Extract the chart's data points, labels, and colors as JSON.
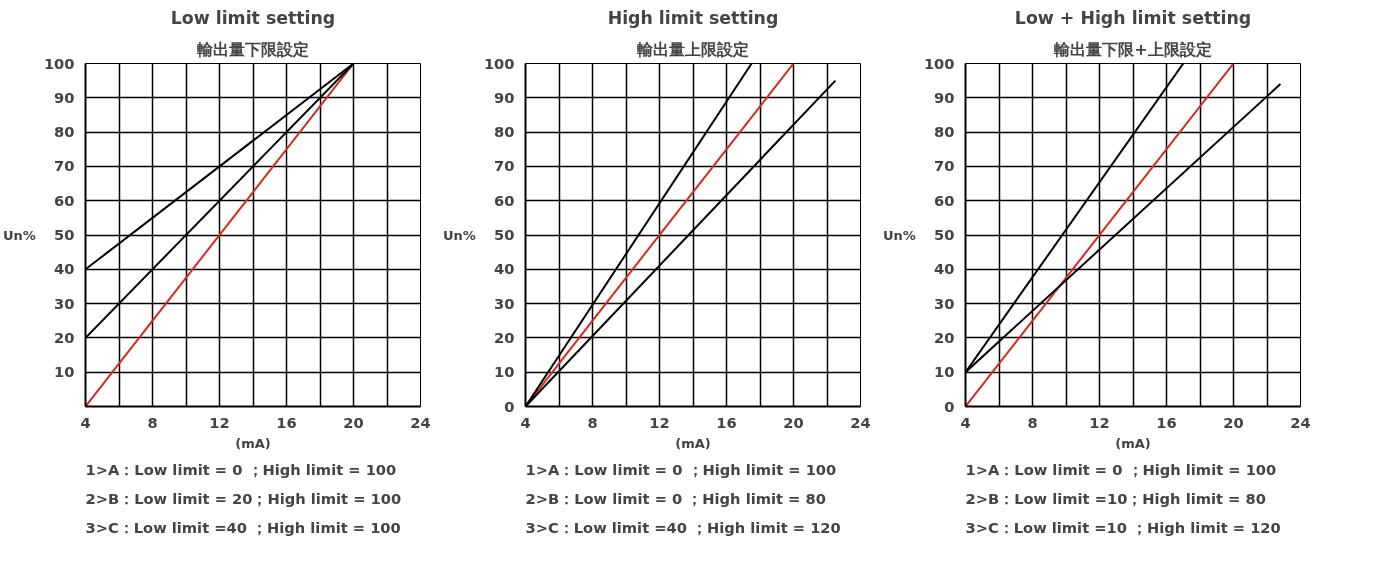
{
  "chart_data": [
    {
      "type": "line",
      "title": "Low limit setting",
      "subtitle": "輸出量下限設定",
      "xlabel": "(mA)",
      "ylabel": "Un%",
      "xlim": [
        4,
        24
      ],
      "ylim": [
        0,
        100
      ],
      "xticks": [
        4,
        {
          "value": 6,
          "label": null
        },
        8,
        {
          "value": 10,
          "label": null
        },
        12,
        {
          "value": 14,
          "label": null
        },
        16,
        {
          "value": 18,
          "label": null
        },
        20,
        {
          "value": 22,
          "label": null
        },
        24
      ],
      "yticks": [
        {
          "value": 0,
          "label": null
        },
        10,
        20,
        30,
        40,
        50,
        60,
        70,
        80,
        90,
        100
      ],
      "grid": true,
      "marker": "none",
      "line_style": "solid",
      "series": [
        {
          "color": "#d42a1e",
          "x": [
            4,
            20
          ],
          "values": [
            0,
            100
          ]
        },
        {
          "color": "#000000",
          "x": [
            4,
            20
          ],
          "values": [
            20,
            100
          ]
        },
        {
          "color": "#000000",
          "x": [
            4,
            20
          ],
          "values": [
            40,
            100
          ]
        }
      ],
      "annotations": [
        "1>A：Low limit = 0 ；High limit = 100",
        "2>B：Low limit = 20；High limit = 100",
        "3>C：Low limit =40 ；High limit = 100"
      ]
    },
    {
      "type": "line",
      "title": "High limit setting",
      "subtitle": "輸出量上限設定",
      "xlabel": "(mA)",
      "ylabel": "Un%",
      "xlim": [
        4,
        24
      ],
      "ylim": [
        0,
        100
      ],
      "xticks": [
        4,
        {
          "value": 6,
          "label": null
        },
        8,
        {
          "value": 10,
          "label": null
        },
        12,
        {
          "value": 14,
          "label": null
        },
        16,
        {
          "value": 18,
          "label": null
        },
        20,
        {
          "value": 22,
          "label": null
        },
        24
      ],
      "yticks": [
        0,
        10,
        20,
        30,
        40,
        50,
        60,
        70,
        80,
        90,
        100
      ],
      "grid": true,
      "marker": "none",
      "line_style": "solid",
      "series": [
        {
          "color": "#d42a1e",
          "x": [
            4,
            20
          ],
          "values": [
            0,
            100
          ]
        },
        {
          "color": "#000000",
          "x": [
            4,
            17.5
          ],
          "values": [
            0,
            100
          ]
        },
        {
          "color": "#000000",
          "x": [
            4,
            22.5
          ],
          "values": [
            0,
            95
          ]
        }
      ],
      "annotations": [
        "1>A：Low limit = 0 ；High limit = 100",
        "2>B：Low limit = 0 ；High limit = 80",
        "3>C：Low limit =40 ；High limit = 120"
      ]
    },
    {
      "type": "line",
      "title": "Low + High limit setting",
      "subtitle": "輸出量下限+上限設定",
      "xlabel": "(mA)",
      "ylabel": "Un%",
      "xlim": [
        4,
        24
      ],
      "ylim": [
        0,
        100
      ],
      "xticks": [
        4,
        {
          "value": 6,
          "label": null
        },
        8,
        {
          "value": 10,
          "label": null
        },
        12,
        {
          "value": 14,
          "label": null
        },
        16,
        {
          "value": 18,
          "label": null
        },
        20,
        {
          "value": 22,
          "label": null
        },
        24
      ],
      "yticks": [
        0,
        10,
        20,
        30,
        40,
        50,
        60,
        70,
        80,
        90,
        100
      ],
      "grid": true,
      "marker": "none",
      "line_style": "solid",
      "series": [
        {
          "color": "#d42a1e",
          "x": [
            4,
            20
          ],
          "values": [
            0,
            100
          ]
        },
        {
          "color": "#000000",
          "x": [
            4,
            17
          ],
          "values": [
            10,
            100
          ]
        },
        {
          "color": "#000000",
          "x": [
            4,
            22.8
          ],
          "values": [
            10,
            94
          ]
        }
      ],
      "annotations": [
        "1>A：Low limit = 0 ；High limit = 100",
        "2>B：Low limit =10；High limit = 80",
        "3>C：Low limit =10 ；High limit = 120"
      ]
    }
  ]
}
